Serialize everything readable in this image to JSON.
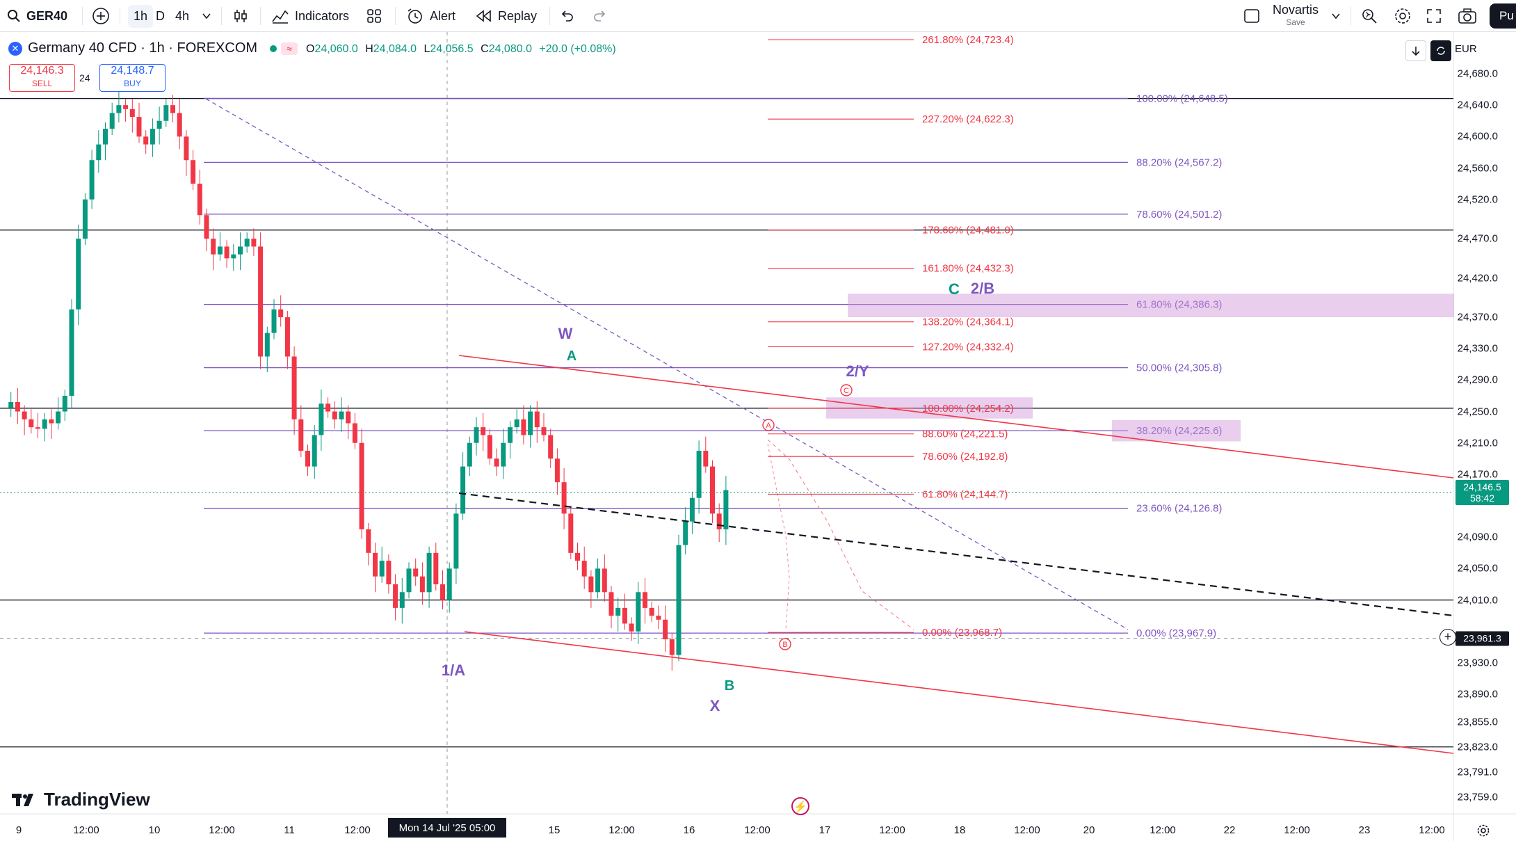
{
  "toolbar": {
    "symbol": "GER40",
    "intervals": [
      "1h",
      "D",
      "4h"
    ],
    "indicators_label": "Indicators",
    "alert_label": "Alert",
    "replay_label": "Replay",
    "layout_name": "Novartis",
    "layout_status": "Save",
    "publish_label": "Pu"
  },
  "legend": {
    "title": "Germany 40 CFD · 1h · FOREXCOM",
    "ohlc": {
      "o": "24,060.0",
      "h": "24,084.0",
      "l": "24,056.5",
      "c": "24,080.0",
      "change": "+20.0 (+0.08%)"
    },
    "sell_price": "24,146.3",
    "sell_label": "SELL",
    "spread": "24",
    "buy_price": "24,148.7",
    "buy_label": "BUY"
  },
  "currency": "EUR",
  "price_axis": {
    "min": 23730,
    "max": 24730,
    "labels": [
      "24,680.0",
      "24,640.0",
      "24,600.0",
      "24,560.0",
      "24,520.0",
      "24,470.0",
      "24,420.0",
      "24,370.0",
      "24,330.0",
      "24,290.0",
      "24,250.0",
      "24,210.0",
      "24,170.0",
      "24,090.0",
      "24,050.0",
      "24,010.0",
      "23,930.0",
      "23,890.0",
      "23,855.0",
      "23,823.0",
      "23,791.0",
      "23,759.0"
    ],
    "values": [
      24680,
      24640,
      24600,
      24560,
      24520,
      24470,
      24420,
      24370,
      24330,
      24290,
      24250,
      24210,
      24170,
      24090,
      24050,
      24010,
      23930,
      23890,
      23855,
      23823,
      23791,
      23759
    ]
  },
  "current_price": {
    "value": 24146.5,
    "label": "24,146.5",
    "countdown": "58:42",
    "color": "#089981"
  },
  "crosshair_price": {
    "value": 23961.3,
    "label": "23,961.3"
  },
  "time_axis": {
    "labels": [
      "9",
      "12:00",
      "10",
      "12:00",
      "11",
      "12:00",
      "15",
      "12:00",
      "16",
      "12:00",
      "17",
      "12:00",
      "18",
      "12:00",
      "20",
      "12:00",
      "22",
      "12:00",
      "23",
      "12:00"
    ],
    "hover_label": "Mon 14 Jul '25  05:00"
  },
  "fib_purple": {
    "color": "#7e57c2",
    "levels": [
      {
        "label": "100.00% (24,648.5)",
        "price": 24648.5
      },
      {
        "label": "88.20% (24,567.2)",
        "price": 24567.2
      },
      {
        "label": "78.60% (24,501.2)",
        "price": 24501.2
      },
      {
        "label": "61.80% (24,386.3)",
        "price": 24386.3
      },
      {
        "label": "50.00% (24,305.8)",
        "price": 24305.8
      },
      {
        "label": "38.20% (24,225.6)",
        "price": 24225.6
      },
      {
        "label": "23.60% (24,126.8)",
        "price": 24126.8
      },
      {
        "label": "0.00% (23,967.9)",
        "price": 23967.9
      }
    ]
  },
  "fib_red": {
    "color": "#f23645",
    "levels": [
      {
        "label": "261.80% (24,723.4)",
        "price": 24723.4
      },
      {
        "label": "227.20% (24,622.3)",
        "price": 24622.3
      },
      {
        "label": "178.60% (24,481.0)",
        "price": 24481.0
      },
      {
        "label": "161.80% (24,432.3)",
        "price": 24432.3
      },
      {
        "label": "138.20% (24,364.1)",
        "price": 24364.1
      },
      {
        "label": "127.20% (24,332.4)",
        "price": 24332.4
      },
      {
        "label": "100.00% (24,254.2)",
        "price": 24254.2
      },
      {
        "label": "88.60% (24,221.5)",
        "price": 24221.5
      },
      {
        "label": "78.60% (24,192.8)",
        "price": 24192.8
      },
      {
        "label": "61.80% (24,144.7)",
        "price": 24144.7
      },
      {
        "label": "0.00% (23,968.7)",
        "price": 23968.7
      }
    ]
  },
  "wave_labels": {
    "w": "W",
    "a": "A",
    "c": "C",
    "two_b": "2/B",
    "two_y": "2/Y",
    "one_a": "1/A",
    "b": "B",
    "x": "X",
    "circle_a": "A",
    "circle_b": "B",
    "circle_c": "C"
  },
  "brand": "TradingView"
}
